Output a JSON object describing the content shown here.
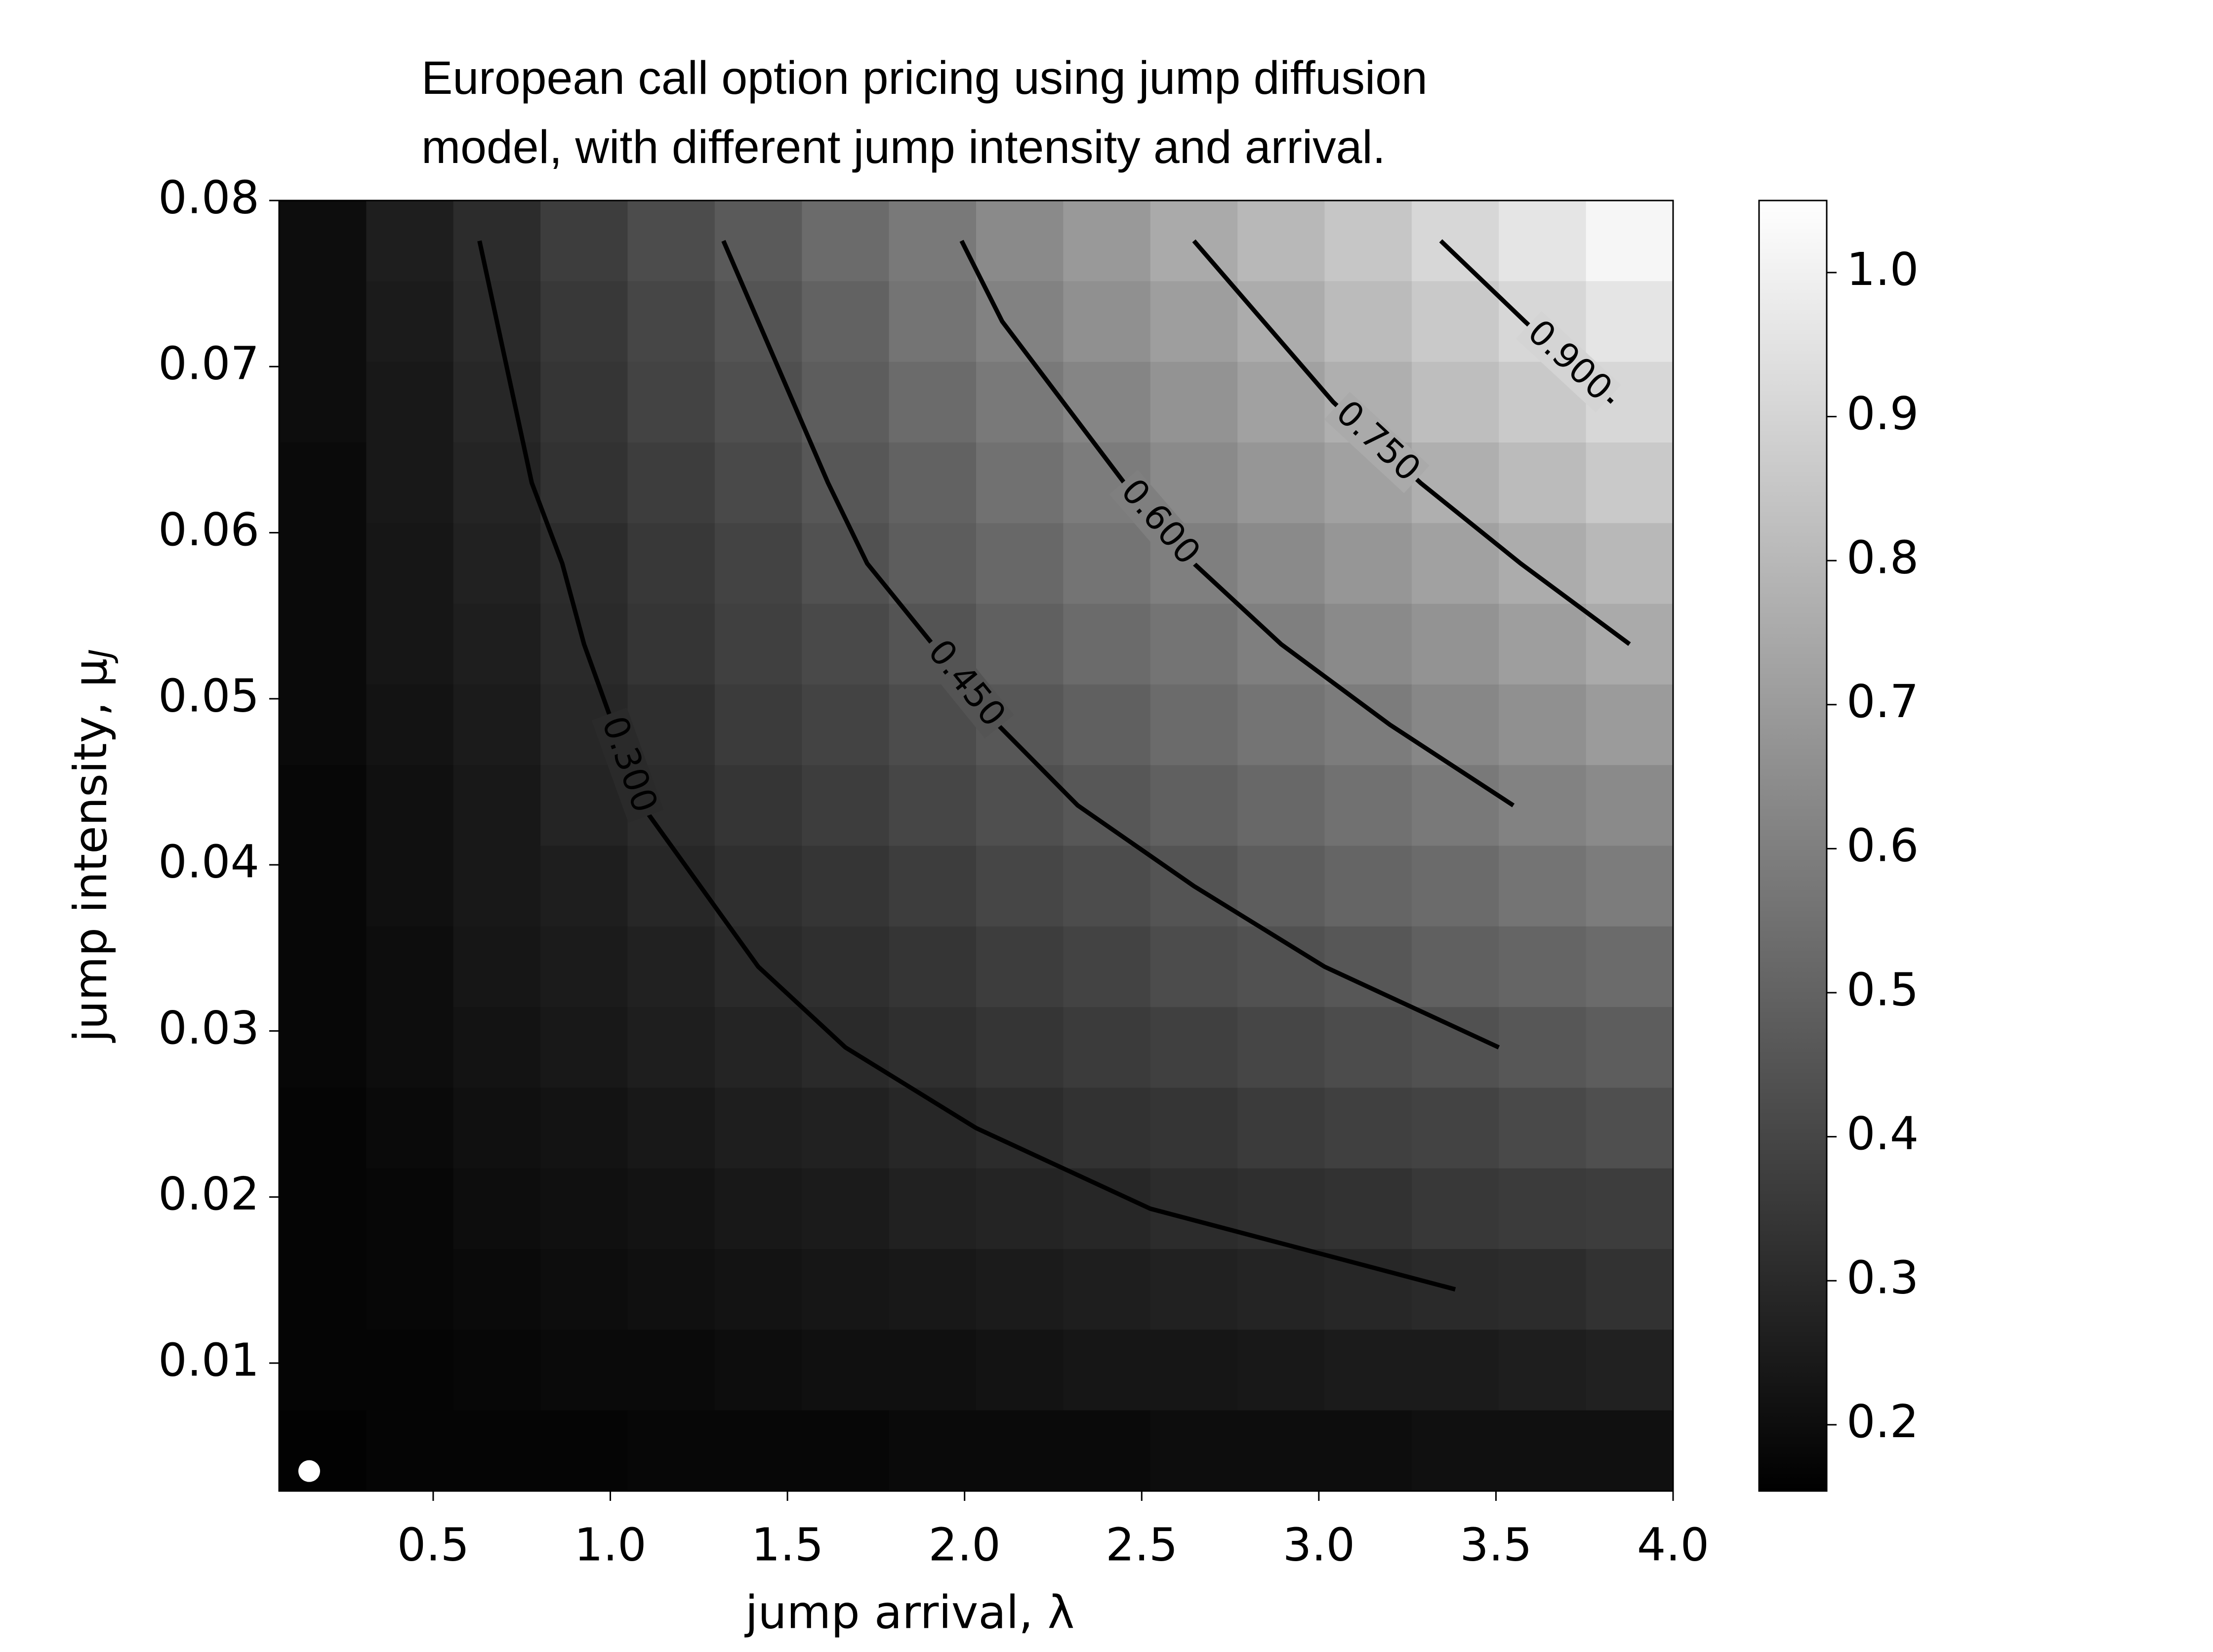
{
  "chart_data": {
    "type": "heatmap",
    "title_lines": [
      "European call option pricing using jump diffusion",
      "model, with different jump intensity and arrival."
    ],
    "x_label": "jump arrival, λ",
    "y_label": "jump intensity, μ",
    "y_label_subscript": "J",
    "xlim": [
      0.065,
      4.0
    ],
    "ylim": [
      0.0023,
      0.08
    ],
    "xticks": [
      0.5,
      {
        "value": 1,
        "label": "1.0"
      },
      1.5,
      {
        "value": 2,
        "label": "2.0"
      },
      2.5,
      {
        "value": 3,
        "label": "3.0"
      },
      3.5,
      {
        "value": 4,
        "label": "4.0"
      }
    ],
    "yticks": [
      0.01,
      0.02,
      0.03,
      0.04,
      0.05,
      0.06,
      0.07,
      0.08
    ],
    "clim": [
      0.154,
      1.05
    ],
    "cticks": [
      0.2,
      0.3,
      0.4,
      0.5,
      0.6,
      0.7,
      0.8,
      0.9,
      {
        "value": 1,
        "label": "1.0"
      }
    ],
    "colormap": "gray",
    "z": [
      [
        0.2,
        0.26,
        0.31,
        0.37,
        0.42,
        0.47,
        0.53,
        0.58,
        0.64,
        0.69,
        0.75,
        0.8,
        0.85,
        0.91,
        0.96,
        1.02
      ],
      [
        0.2,
        0.25,
        0.3,
        0.35,
        0.4,
        0.45,
        0.5,
        0.56,
        0.61,
        0.66,
        0.71,
        0.76,
        0.81,
        0.86,
        0.91,
        0.96
      ],
      [
        0.2,
        0.24,
        0.29,
        0.34,
        0.39,
        0.43,
        0.48,
        0.53,
        0.58,
        0.62,
        0.67,
        0.72,
        0.77,
        0.82,
        0.86,
        0.91
      ],
      [
        0.19,
        0.24,
        0.28,
        0.33,
        0.37,
        0.41,
        0.46,
        0.5,
        0.55,
        0.59,
        0.64,
        0.68,
        0.72,
        0.77,
        0.81,
        0.86
      ],
      [
        0.19,
        0.23,
        0.27,
        0.31,
        0.35,
        0.39,
        0.44,
        0.48,
        0.52,
        0.56,
        0.6,
        0.64,
        0.68,
        0.72,
        0.76,
        0.8
      ],
      [
        0.19,
        0.23,
        0.26,
        0.3,
        0.34,
        0.38,
        0.41,
        0.45,
        0.49,
        0.53,
        0.56,
        0.6,
        0.64,
        0.67,
        0.71,
        0.75
      ],
      [
        0.19,
        0.22,
        0.25,
        0.29,
        0.32,
        0.36,
        0.39,
        0.42,
        0.46,
        0.49,
        0.53,
        0.56,
        0.59,
        0.63,
        0.66,
        0.7
      ],
      [
        0.18,
        0.21,
        0.24,
        0.28,
        0.31,
        0.34,
        0.37,
        0.4,
        0.43,
        0.46,
        0.49,
        0.52,
        0.55,
        0.58,
        0.61,
        0.64
      ],
      [
        0.18,
        0.21,
        0.24,
        0.26,
        0.29,
        0.32,
        0.34,
        0.37,
        0.4,
        0.42,
        0.45,
        0.48,
        0.51,
        0.53,
        0.56,
        0.59
      ],
      [
        0.18,
        0.2,
        0.23,
        0.25,
        0.27,
        0.3,
        0.32,
        0.34,
        0.37,
        0.39,
        0.42,
        0.44,
        0.46,
        0.49,
        0.51,
        0.53
      ],
      [
        0.18,
        0.2,
        0.22,
        0.24,
        0.26,
        0.28,
        0.3,
        0.32,
        0.34,
        0.36,
        0.38,
        0.4,
        0.42,
        0.44,
        0.46,
        0.48
      ],
      [
        0.17,
        0.19,
        0.21,
        0.22,
        0.24,
        0.26,
        0.27,
        0.29,
        0.31,
        0.33,
        0.34,
        0.36,
        0.38,
        0.39,
        0.41,
        0.43
      ],
      [
        0.17,
        0.18,
        0.2,
        0.21,
        0.22,
        0.24,
        0.25,
        0.27,
        0.28,
        0.29,
        0.31,
        0.32,
        0.33,
        0.35,
        0.36,
        0.37
      ],
      [
        0.17,
        0.18,
        0.19,
        0.2,
        0.21,
        0.22,
        0.23,
        0.24,
        0.25,
        0.26,
        0.27,
        0.28,
        0.29,
        0.3,
        0.31,
        0.33
      ],
      [
        0.17,
        0.17,
        0.18,
        0.19,
        0.19,
        0.2,
        0.21,
        0.21,
        0.22,
        0.23,
        0.23,
        0.24,
        0.25,
        0.25,
        0.26,
        0.27
      ],
      [
        0.16,
        0.17,
        0.17,
        0.17,
        0.18,
        0.18,
        0.18,
        0.19,
        0.19,
        0.19,
        0.2,
        0.2,
        0.2,
        0.21,
        0.21,
        0.21
      ]
    ],
    "contour_levels": [
      0.3,
      0.45,
      0.6,
      0.75,
      0.9
    ],
    "contour_labels": [
      "0.300",
      "0.450",
      "0.600",
      "0.750",
      "0.900"
    ],
    "contour_color": "#000000",
    "marker": {
      "x": 0.15,
      "y": 0.0035,
      "color": "#ffffff"
    }
  }
}
